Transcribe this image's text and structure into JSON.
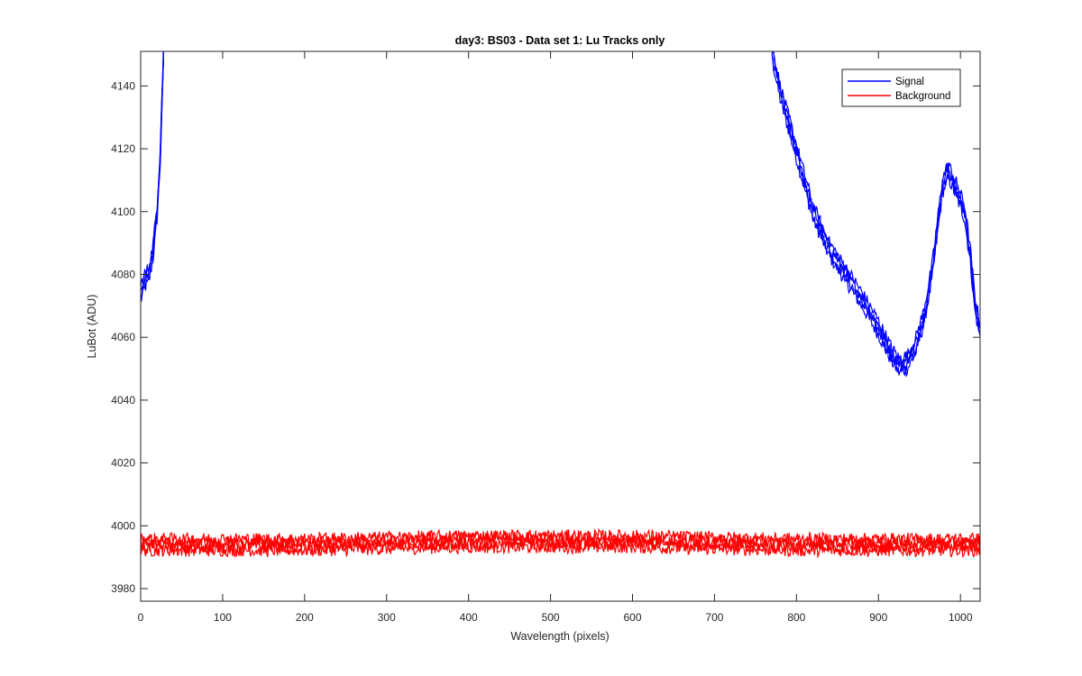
{
  "chart_data": {
    "type": "line",
    "title": "day3: BS03 - Data set 1: Lu Tracks only",
    "xlabel": "Wavelength (pixels)",
    "ylabel": "LuBot (ADU)",
    "xlim": [
      0,
      1024
    ],
    "ylim": [
      3976,
      4151
    ],
    "x_ticks": [
      0,
      100,
      200,
      300,
      400,
      500,
      600,
      700,
      800,
      900,
      1000
    ],
    "y_ticks": [
      3980,
      4000,
      4020,
      4040,
      4060,
      4080,
      4100,
      4120,
      4140
    ],
    "grid": false,
    "legend_position": "top-right",
    "series": [
      {
        "name": "Signal",
        "color": "#0000ff",
        "tracks": 4,
        "noise": 2.0,
        "points": [
          [
            0,
            4074
          ],
          [
            5,
            4078
          ],
          [
            10,
            4080
          ],
          [
            15,
            4087
          ],
          [
            20,
            4100
          ],
          [
            24,
            4118
          ],
          [
            26,
            4135
          ],
          [
            28,
            4151
          ],
          [
            770,
            4151
          ],
          [
            780,
            4138
          ],
          [
            800,
            4119
          ],
          [
            820,
            4100
          ],
          [
            840,
            4088
          ],
          [
            860,
            4080
          ],
          [
            880,
            4072
          ],
          [
            900,
            4063
          ],
          [
            915,
            4055
          ],
          [
            925,
            4051
          ],
          [
            935,
            4052
          ],
          [
            945,
            4057
          ],
          [
            955,
            4066
          ],
          [
            965,
            4080
          ],
          [
            972,
            4095
          ],
          [
            978,
            4108
          ],
          [
            985,
            4113
          ],
          [
            995,
            4107
          ],
          [
            1005,
            4100
          ],
          [
            1012,
            4086
          ],
          [
            1018,
            4070
          ],
          [
            1024,
            4062
          ]
        ]
      },
      {
        "name": "Background",
        "color": "#ff0000",
        "tracks": 4,
        "noise": 2.0,
        "points": [
          [
            0,
            3994
          ],
          [
            200,
            3994
          ],
          [
            400,
            3995
          ],
          [
            600,
            3995
          ],
          [
            800,
            3994
          ],
          [
            1024,
            3994
          ]
        ]
      }
    ]
  }
}
